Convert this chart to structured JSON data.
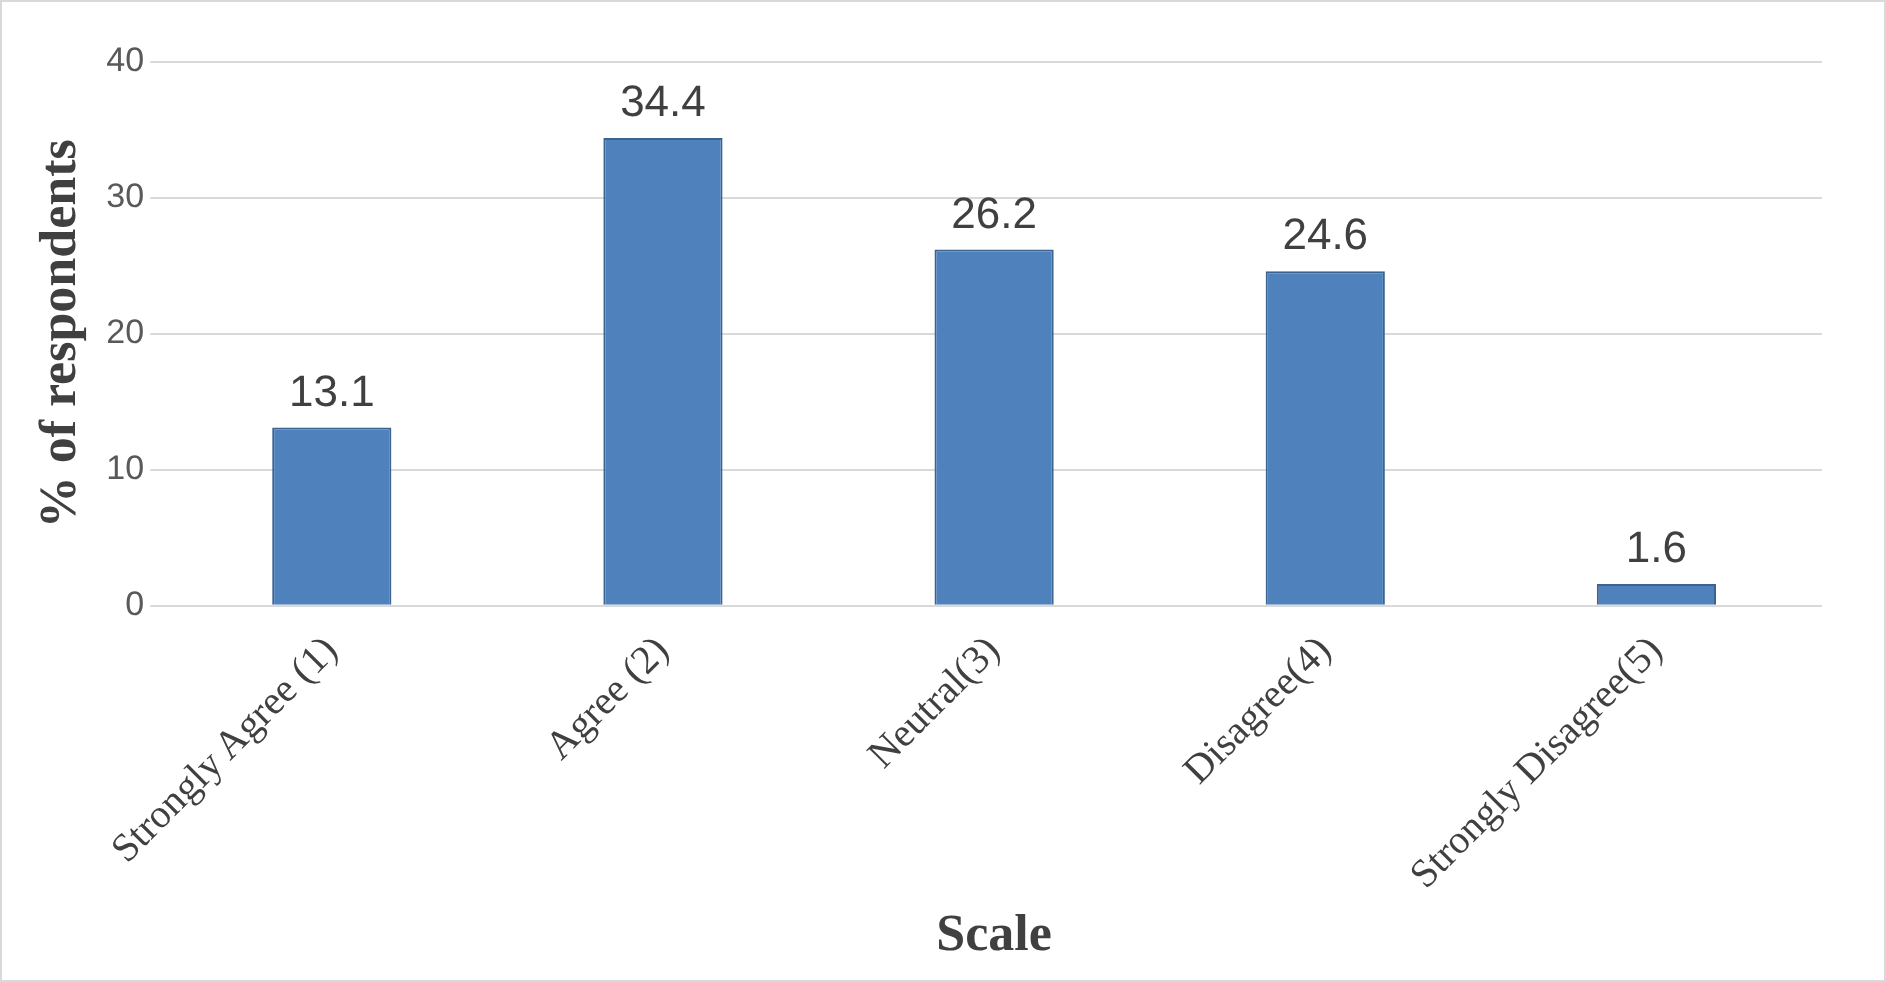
{
  "chart_data": {
    "type": "bar",
    "xlabel": "Scale",
    "ylabel": "% of respondents",
    "categories": [
      "Strongly Agree (1)",
      "Agree (2)",
      "Neutral(3)",
      "Disagree(4)",
      "Strongly Disagree(5)"
    ],
    "values": [
      13.1,
      34.4,
      26.2,
      24.6,
      1.6
    ],
    "color": "#4f81bd",
    "ylim": [
      0,
      40
    ],
    "yticks": [
      0,
      10,
      20,
      30,
      40
    ],
    "grid": "y",
    "legend": false,
    "data_labels": true
  }
}
